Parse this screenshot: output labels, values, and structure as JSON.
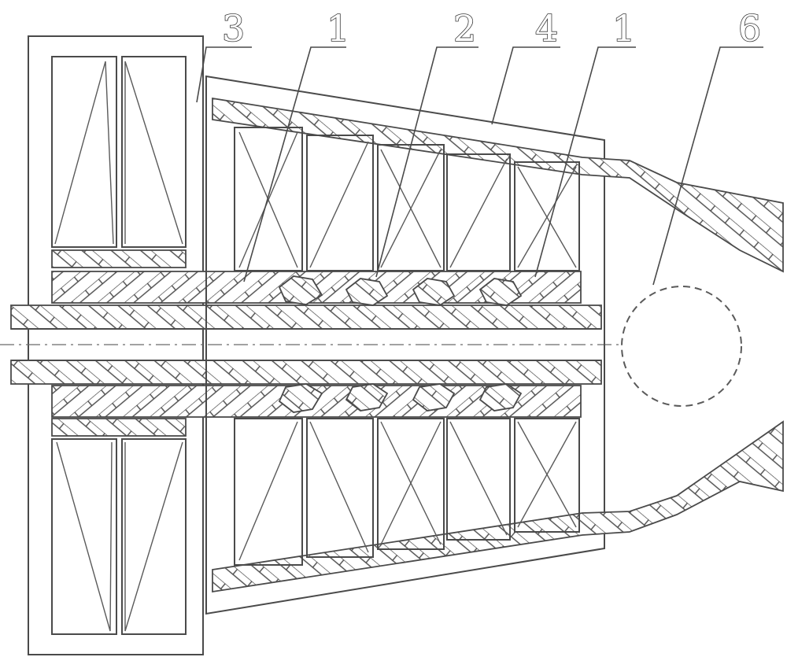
{
  "labels": {
    "l3": "3",
    "l1a": "1",
    "l2": "2",
    "l4": "4",
    "l1b": "1",
    "l6": "6"
  }
}
